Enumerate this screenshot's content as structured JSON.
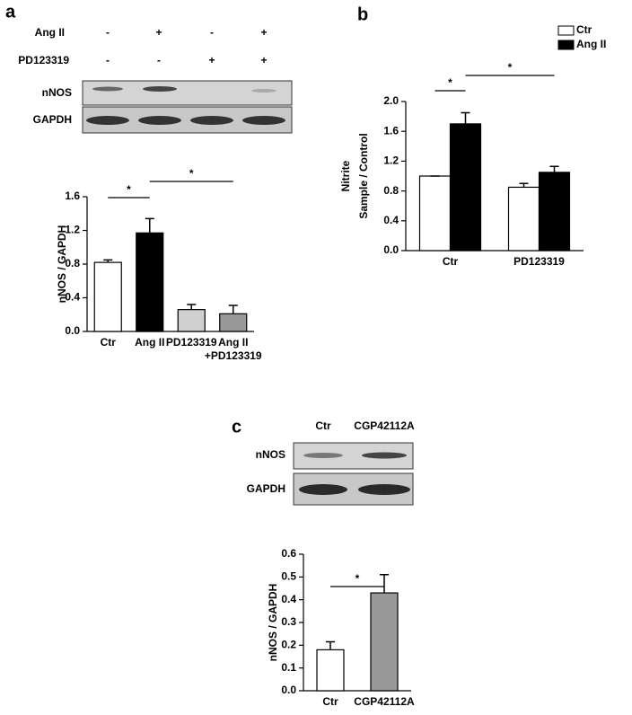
{
  "panel_labels": [
    "a",
    "b",
    "c"
  ],
  "blot_a": {
    "rows": [
      {
        "label": "Ang II",
        "signs": [
          "-",
          "+",
          "-",
          "+"
        ]
      },
      {
        "label": "PD123319",
        "signs": [
          "-",
          "-",
          "+",
          "+"
        ]
      }
    ],
    "bands": [
      "nNOS",
      "GAPDH"
    ]
  },
  "blot_c": {
    "lanes": [
      "Ctr",
      "CGP42112A"
    ],
    "bands": [
      "nNOS",
      "GAPDH"
    ]
  },
  "chart_data": [
    {
      "type": "bar",
      "categories": [
        "Ctr",
        "Ang II",
        "PD123319",
        "Ang II\n+PD123319"
      ],
      "values": [
        0.82,
        1.17,
        0.26,
        0.21
      ],
      "errors": [
        0.03,
        0.17,
        0.06,
        0.1
      ],
      "colors": [
        "#ffffff",
        "#000000",
        "#d0d0d0",
        "#999999"
      ],
      "ylabel": [
        "nNOS / GAPDH"
      ],
      "ylim": [
        0,
        1.6
      ],
      "yticks": [
        {
          "value": 0,
          "label": "0.0"
        },
        0.4,
        0.8,
        1.2,
        1.6
      ],
      "significance": [
        {
          "label": "*",
          "between": [
            0,
            1
          ]
        },
        {
          "label": "*",
          "between": [
            1,
            3
          ]
        }
      ]
    },
    {
      "type": "bar",
      "categories": [
        "Ctr",
        "PD123319"
      ],
      "series": [
        {
          "name": "Ctr",
          "color": "#ffffff",
          "values": [
            1.0,
            0.85
          ],
          "errors": [
            0,
            0.05
          ]
        },
        {
          "name": "Ang II",
          "color": "#000000",
          "values": [
            1.7,
            1.05
          ],
          "errors": [
            0.15,
            0.08
          ]
        }
      ],
      "ylabel": [
        "Nitrite",
        "Sample / Control"
      ],
      "ylim": [
        0,
        2.0
      ],
      "yticks": [
        {
          "value": 0,
          "label": "0.0"
        },
        0.4,
        0.8,
        1.2,
        1.6,
        {
          "value": 2.0,
          "label": "2.0"
        }
      ],
      "legend": "top-right",
      "significance": [
        {
          "label": "*",
          "between": [
            [
              0,
              0
            ],
            [
              0,
              1
            ]
          ]
        },
        {
          "label": "*",
          "between": [
            [
              0,
              1
            ],
            [
              1,
              1
            ]
          ]
        }
      ]
    },
    {
      "type": "bar",
      "categories": [
        "Ctr",
        "CGP42112A"
      ],
      "values": [
        0.18,
        0.43
      ],
      "errors": [
        0.035,
        0.08
      ],
      "colors": [
        "#ffffff",
        "#999999"
      ],
      "ylabel": [
        "nNOS / GAPDH"
      ],
      "ylim": [
        0,
        0.6
      ],
      "yticks": [
        {
          "value": 0,
          "label": "0.0"
        },
        0.1,
        0.2,
        0.3,
        0.4,
        0.5,
        0.6
      ],
      "significance": [
        {
          "label": "*",
          "between": [
            0,
            1
          ]
        }
      ]
    }
  ]
}
